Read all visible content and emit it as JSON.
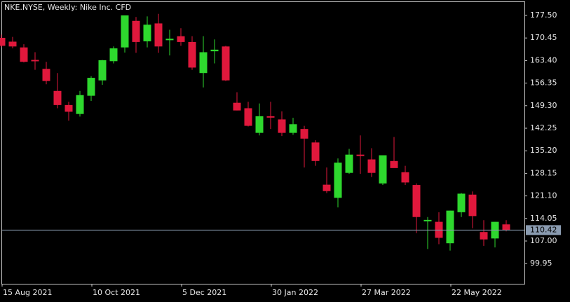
{
  "chart_data": {
    "type": "candlestick",
    "title": "NKE.NYSE, Weekly:  Nike Inc. CFD",
    "categories": [
      "15 Aug 2021",
      null,
      null,
      null,
      null,
      null,
      null,
      null,
      "10 Oct 2021",
      null,
      null,
      null,
      null,
      null,
      null,
      null,
      "5 Dec 2021",
      null,
      null,
      null,
      null,
      null,
      null,
      null,
      "30 Jan 2022",
      null,
      null,
      null,
      null,
      null,
      null,
      null,
      "27 Mar 2022",
      null,
      null,
      null,
      null,
      null,
      null,
      null,
      "22 May 2022",
      null,
      null,
      null,
      null,
      null
    ],
    "open": [
      170.5,
      169.3,
      167.5,
      163.6,
      160.8,
      153.9,
      149.5,
      146.7,
      152.4,
      157.2,
      163.2,
      167.5,
      175.8,
      169.4,
      175.0,
      170.0,
      171.0,
      169.2,
      159.5,
      166.3,
      167.8,
      150.2,
      148.5,
      140.8,
      146.0,
      145.0,
      140.8,
      142.0,
      137.8,
      124.6,
      120.5,
      128.3,
      134.0,
      132.5,
      125.0,
      132.0,
      128.5,
      124.5,
      113.3,
      113.0,
      106.3,
      116.0,
      121.5,
      109.8,
      107.8,
      112.2
    ],
    "high": [
      171.5,
      170.8,
      168.5,
      166.0,
      163.0,
      159.5,
      150.5,
      153.9,
      158.5,
      163.6,
      167.8,
      177.5,
      177.0,
      177.2,
      178.0,
      173.0,
      173.5,
      171.0,
      171.0,
      170.0,
      168.0,
      153.5,
      150.5,
      150.0,
      150.5,
      147.5,
      145.5,
      143.0,
      138.5,
      130.0,
      132.8,
      135.8,
      140.0,
      136.0,
      133.5,
      139.5,
      130.5,
      125.0,
      114.5,
      116.0,
      116.5,
      122.0,
      122.5,
      113.5,
      113.0,
      113.5
    ],
    "low": [
      167.5,
      167.2,
      162.8,
      160.5,
      156.0,
      148.5,
      144.6,
      145.9,
      150.8,
      155.8,
      162.5,
      165.9,
      165.8,
      167.5,
      165.8,
      165.0,
      168.0,
      160.5,
      155.0,
      162.5,
      157.0,
      147.8,
      142.8,
      140.0,
      142.0,
      139.8,
      140.2,
      130.0,
      130.5,
      122.0,
      117.5,
      128.0,
      128.0,
      127.0,
      124.5,
      130.0,
      124.5,
      109.5,
      104.5,
      106.0,
      104.0,
      114.5,
      111.0,
      105.5,
      105.0,
      110.0
    ],
    "close": [
      168.0,
      167.8,
      163.0,
      163.4,
      157.0,
      149.5,
      147.4,
      152.6,
      158.0,
      163.5,
      167.2,
      177.5,
      169.2,
      174.6,
      167.8,
      170.2,
      169.2,
      161.2,
      166.0,
      166.8,
      157.2,
      147.8,
      143.0,
      146.0,
      145.6,
      140.8,
      143.5,
      139.0,
      132.0,
      122.6,
      131.5,
      134.0,
      133.8,
      128.3,
      133.8,
      129.8,
      125.3,
      114.5,
      113.6,
      108.0,
      116.5,
      121.8,
      114.8,
      107.5,
      113.0,
      110.4
    ],
    "up_color": "#2ed82e",
    "down_color": "#e0183c",
    "last_price": 110.42,
    "ylim": [
      93.64,
      181.66
    ],
    "yticks": [
      {
        "value": 177.5,
        "label": "177.50"
      },
      170.45,
      {
        "value": 163.4,
        "label": "163.40"
      },
      156.35,
      {
        "value": 149.3,
        "label": "149.30"
      },
      142.25,
      {
        "value": 135.2,
        "label": "135.20"
      },
      128.15,
      {
        "value": 121.1,
        "label": "121.10"
      },
      114.05,
      {
        "value": 107,
        "label": "107.00"
      },
      99.95
    ],
    "grid": false
  }
}
